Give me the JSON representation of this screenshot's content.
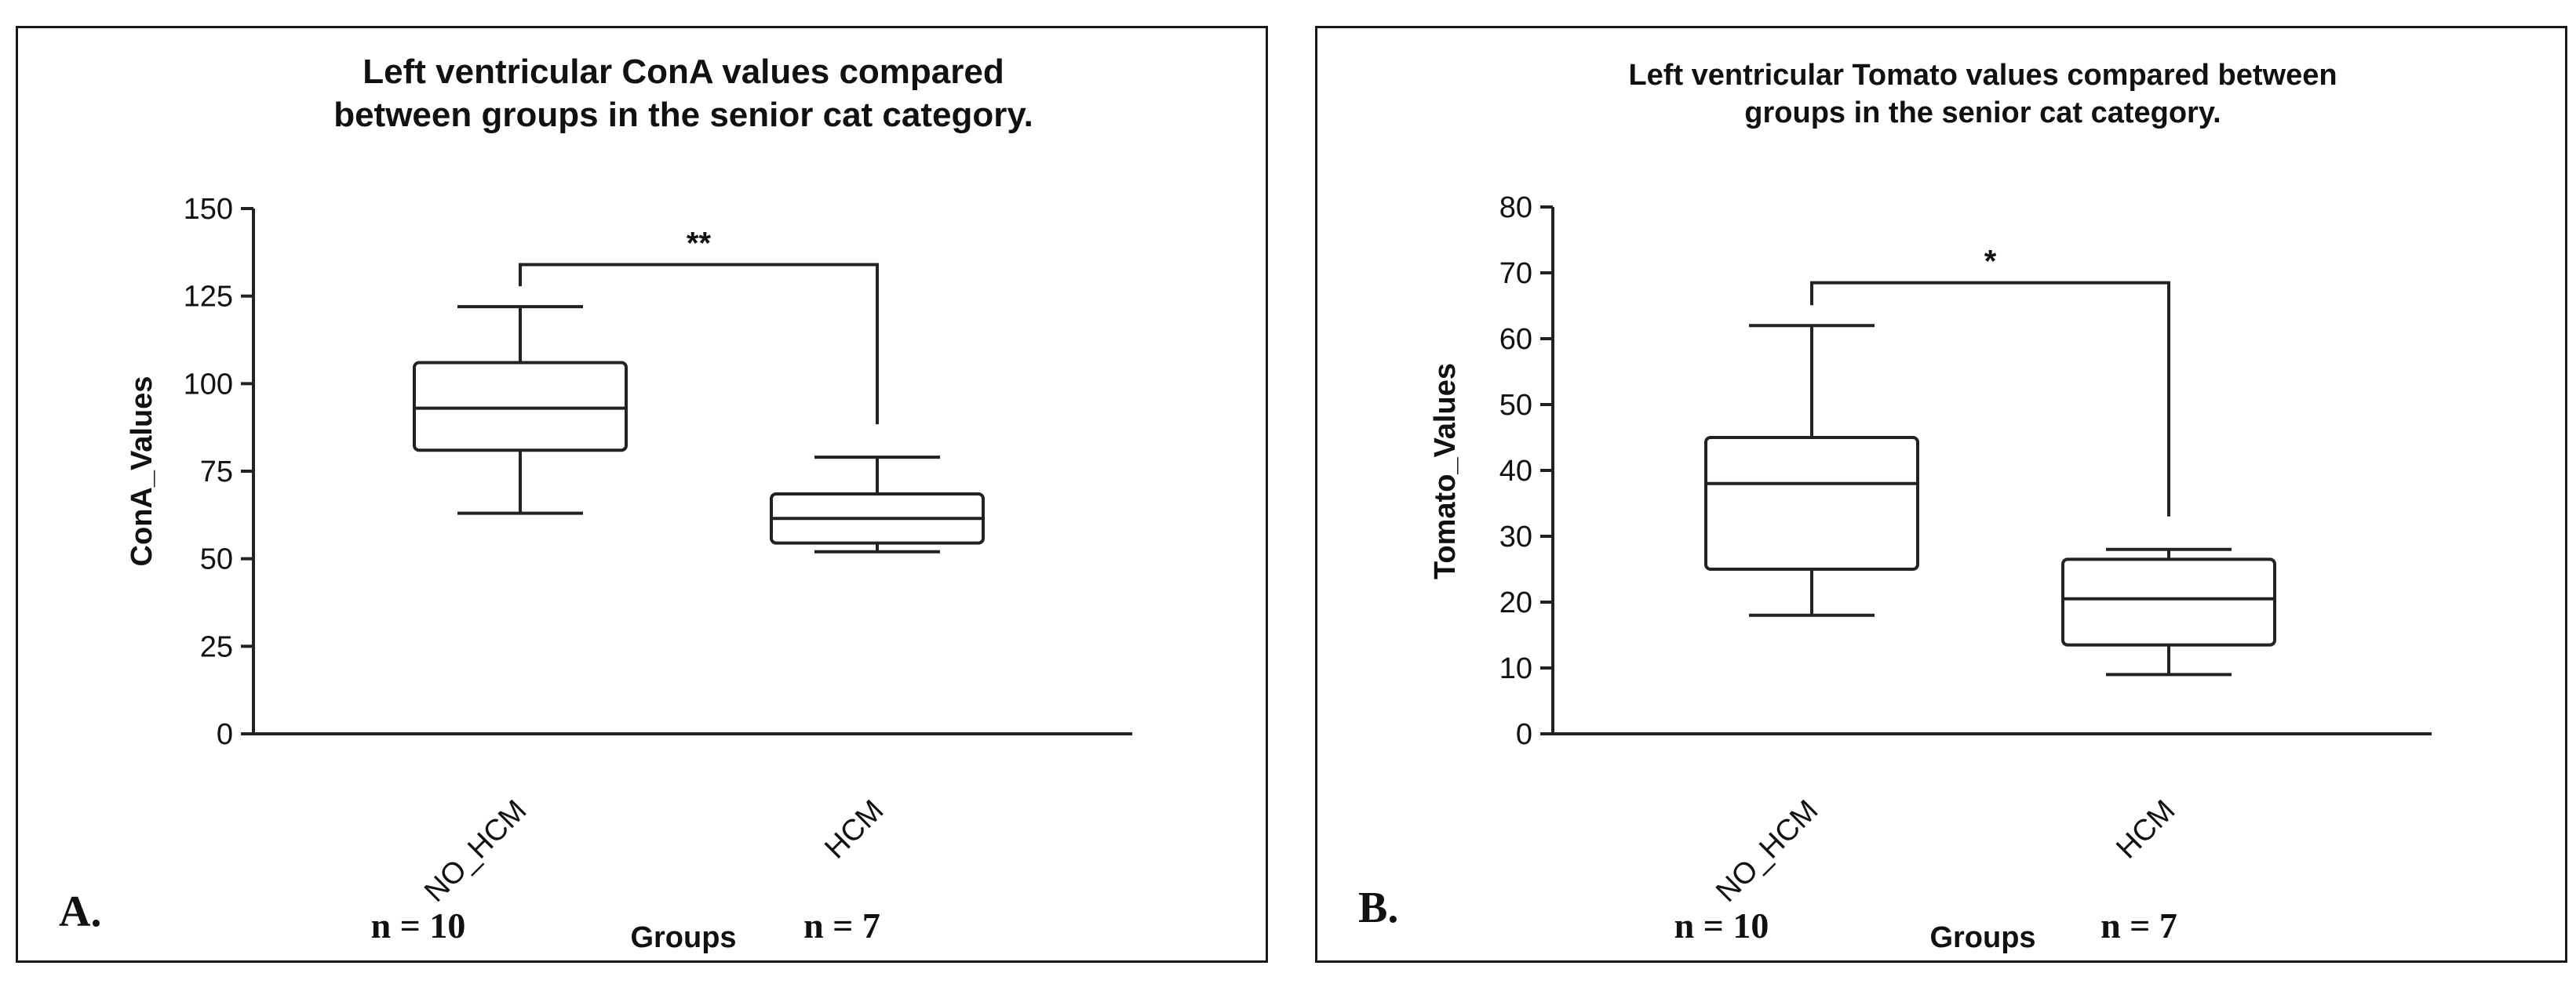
{
  "chart_data": [
    {
      "type": "box",
      "panel_label": "A.",
      "title": [
        "Left ventricular ConA values compared",
        "between groups in the senior cat category."
      ],
      "ylabel": "ConA_Values",
      "xlabel": "Groups",
      "ylim": [
        0,
        150
      ],
      "yticks": [
        0,
        25,
        50,
        75,
        100,
        125,
        150
      ],
      "categories": [
        "NO_HCM",
        "HCM"
      ],
      "boxes": [
        {
          "name": "NO_HCM",
          "min": 63,
          "q1": 81,
          "median": 93,
          "q3": 106,
          "max": 122
        },
        {
          "name": "HCM",
          "min": 52,
          "q1": 54.5,
          "median": 61.5,
          "q3": 68.5,
          "max": 79
        }
      ],
      "significance": {
        "label": "**",
        "from": "NO_HCM",
        "to": "HCM",
        "y": 134
      },
      "n_labels": [
        "n = 10",
        "n = 7"
      ]
    },
    {
      "type": "box",
      "panel_label": "B.",
      "title": [
        "Left ventricular Tomato values compared between",
        "groups in the senior cat category."
      ],
      "ylabel": "Tomato_Values",
      "xlabel": "Groups",
      "ylim": [
        0,
        80
      ],
      "yticks": [
        0,
        10,
        20,
        30,
        40,
        50,
        60,
        70,
        80
      ],
      "categories": [
        "NO_HCM",
        "HCM"
      ],
      "boxes": [
        {
          "name": "NO_HCM",
          "min": 18,
          "q1": 25,
          "median": 38,
          "q3": 45,
          "max": 62
        },
        {
          "name": "HCM",
          "min": 9,
          "q1": 13.5,
          "median": 20.5,
          "q3": 26.5,
          "max": 28
        }
      ],
      "significance": {
        "label": "*",
        "from": "NO_HCM",
        "to": "HCM",
        "y": 68.5
      },
      "n_labels": [
        "n = 10",
        "n = 7"
      ]
    }
  ]
}
